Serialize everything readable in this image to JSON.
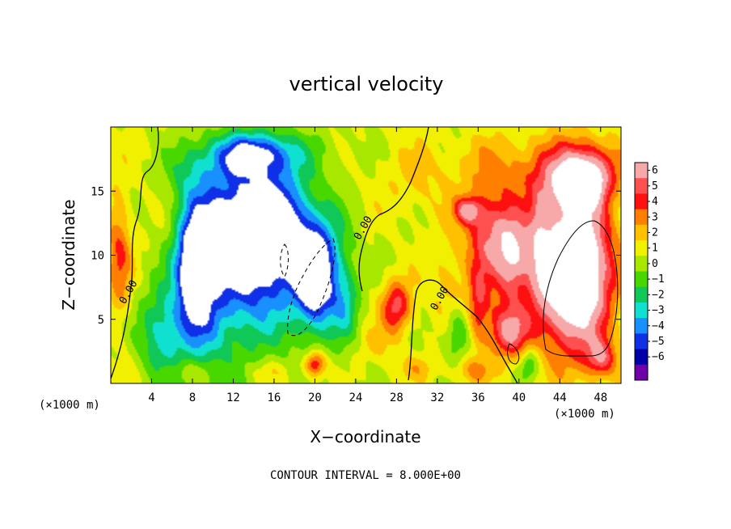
{
  "chart_data": {
    "type": "heatmap",
    "title": "vertical velocity",
    "xlabel": "X−coordinate",
    "ylabel": "Z−coordinate",
    "x_unit_label": "(×1000 m)",
    "y_unit_label": "(×1000 m)",
    "footer": "CONTOUR INTERVAL = 8.000E+00",
    "xlim": [
      0,
      50
    ],
    "ylim": [
      0,
      20
    ],
    "x_ticks": [
      4,
      8,
      12,
      16,
      20,
      24,
      28,
      32,
      36,
      40,
      44,
      48
    ],
    "y_ticks": [
      5,
      10,
      15
    ],
    "contour_labels": [
      {
        "text": "0.00",
        "x": 2,
        "y": 7
      },
      {
        "text": "0.00",
        "x": 25,
        "y": 12
      },
      {
        "text": "0.00",
        "x": 32.5,
        "y": 6.5
      }
    ],
    "colorbar": {
      "levels": [
        6,
        5,
        4,
        3,
        2,
        1,
        0,
        -1,
        -2,
        -3,
        -4,
        -5,
        -6
      ],
      "colors": [
        "#f7a8a8",
        "#ff5050",
        "#ff1010",
        "#ff7f00",
        "#ffc000",
        "#f0f000",
        "#a8e800",
        "#48d800",
        "#10c858",
        "#10e0d0",
        "#1890ff",
        "#1030e8",
        "#0000a8",
        "#7000a8"
      ]
    },
    "field_blobs": [
      {
        "x": 8,
        "y": 16.5,
        "rx": 3,
        "ry": 2.5,
        "v": -2.2
      },
      {
        "x": 14,
        "y": 17,
        "rx": 4,
        "ry": 2.5,
        "v": -3
      },
      {
        "x": 9,
        "y": 7,
        "rx": 2.6,
        "ry": 6.5,
        "v": -4.5
      },
      {
        "x": 13,
        "y": 9,
        "rx": 3,
        "ry": 6,
        "v": -4.5
      },
      {
        "x": 17,
        "y": 10,
        "rx": 3.5,
        "ry": 6,
        "v": -4.2
      },
      {
        "x": 21,
        "y": 9,
        "rx": 2.5,
        "ry": 4.5,
        "v": -3.2
      },
      {
        "x": 5,
        "y": 4,
        "rx": 2.2,
        "ry": 3.5,
        "v": -3.5
      },
      {
        "x": 11.5,
        "y": 12,
        "rx": 3.5,
        "ry": 3,
        "v": -5.5
      },
      {
        "x": 16,
        "y": 12,
        "rx": 3,
        "ry": 3.2,
        "v": -5.5
      },
      {
        "x": 20,
        "y": 8,
        "rx": 1.8,
        "ry": 3.5,
        "v": -5
      },
      {
        "x": 14,
        "y": 18,
        "rx": 4,
        "ry": 1.5,
        "v": -4
      },
      {
        "x": 8,
        "y": 9,
        "rx": 1.6,
        "ry": 4,
        "v": -5.2
      },
      {
        "x": 23,
        "y": 6,
        "rx": 1.3,
        "ry": 3,
        "v": -2.2
      },
      {
        "x": 34,
        "y": 4,
        "rx": 1.2,
        "ry": 2,
        "v": -2.5
      },
      {
        "x": 41,
        "y": 1.5,
        "rx": 0.9,
        "ry": 1.2,
        "v": -2.5
      },
      {
        "x": 0.8,
        "y": 10,
        "rx": 1.2,
        "ry": 5,
        "v": 3
      },
      {
        "x": 28,
        "y": 6,
        "rx": 1.5,
        "ry": 2,
        "v": 4.5
      },
      {
        "x": 20,
        "y": 1.5,
        "rx": 1,
        "ry": 1,
        "v": 4.5
      },
      {
        "x": 37,
        "y": 12,
        "rx": 2.5,
        "ry": 3,
        "v": 3.5
      },
      {
        "x": 35,
        "y": 13.5,
        "rx": 1.3,
        "ry": 1,
        "v": 4.5
      },
      {
        "x": 39.5,
        "y": 10,
        "rx": 1.6,
        "ry": 3,
        "v": 4.5
      },
      {
        "x": 39,
        "y": 4,
        "rx": 2,
        "ry": 2,
        "v": 4.5
      },
      {
        "x": 45,
        "y": 16,
        "rx": 4,
        "ry": 3,
        "v": 4
      },
      {
        "x": 45,
        "y": 8,
        "rx": 3.8,
        "ry": 6,
        "v": 5
      },
      {
        "x": 45.5,
        "y": 9,
        "rx": 3.2,
        "ry": 5,
        "v": 7
      },
      {
        "x": 46,
        "y": 15.5,
        "rx": 2,
        "ry": 1.5,
        "v": 7
      },
      {
        "x": 38,
        "y": 9,
        "rx": 2.5,
        "ry": 5,
        "v": 2
      },
      {
        "x": 33,
        "y": 8,
        "rx": 2,
        "ry": 3,
        "v": 1.5
      },
      {
        "x": 36,
        "y": 6,
        "rx": 1,
        "ry": 3,
        "v": 3.2
      },
      {
        "x": 42,
        "y": 11,
        "rx": 1,
        "ry": 4,
        "v": 3
      },
      {
        "x": 47,
        "y": 17,
        "rx": 3,
        "ry": 2,
        "v": 2.5
      },
      {
        "x": 30,
        "y": 16,
        "rx": 4,
        "ry": 3,
        "v": 1.2
      },
      {
        "x": 38,
        "y": 17,
        "rx": 4,
        "ry": 2.5,
        "v": 1.8
      },
      {
        "x": 26,
        "y": 3,
        "rx": 2,
        "ry": 1.5,
        "v": 1
      },
      {
        "x": 35.5,
        "y": 1,
        "rx": 2,
        "ry": 1,
        "v": 2
      },
      {
        "x": 30,
        "y": 1.2,
        "rx": 2,
        "ry": 1,
        "v": 1.5
      },
      {
        "x": 8,
        "y": 1,
        "rx": 2.5,
        "ry": 0.9,
        "v": 1.2
      },
      {
        "x": 15.5,
        "y": 1,
        "rx": 2,
        "ry": 0.8,
        "v": 1.2
      },
      {
        "x": 48,
        "y": 2,
        "rx": 1.5,
        "ry": 1.5,
        "v": 4
      },
      {
        "x": 5,
        "y": 17,
        "rx": 2,
        "ry": 3,
        "v": 0.4
      },
      {
        "x": 22,
        "y": 18,
        "rx": 3,
        "ry": 2,
        "v": -0.4
      }
    ]
  }
}
